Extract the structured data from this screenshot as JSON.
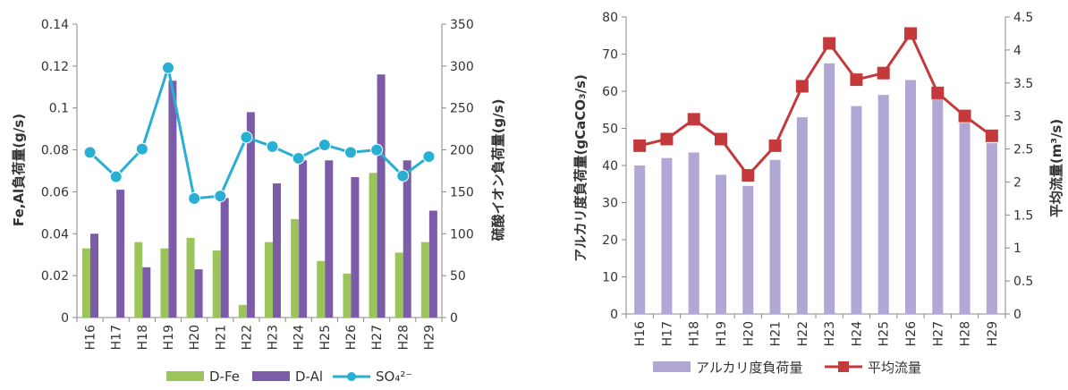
{
  "colors": {
    "d_fe": "#9BC45A",
    "d_al": "#7C5CA8",
    "so4": "#2AAFD4",
    "alk_bar": "#B1A6D4",
    "flow": "#C43A3A",
    "axis": "#888888"
  },
  "chart_data": [
    {
      "type": "bar",
      "categories": [
        "H16",
        "H17",
        "H18",
        "H19",
        "H20",
        "H21",
        "H22",
        "H23",
        "H24",
        "H25",
        "H26",
        "H27",
        "H28",
        "H29"
      ],
      "series": [
        {
          "name": "D-Fe",
          "axis": "left",
          "type": "bar",
          "values": [
            0.033,
            0,
            0.036,
            0.033,
            0.038,
            0.032,
            0.006,
            0.036,
            0.047,
            0.027,
            0.021,
            0.069,
            0.031,
            0.036
          ]
        },
        {
          "name": "D-Al",
          "axis": "left",
          "type": "bar",
          "values": [
            0.04,
            0.061,
            0.024,
            0.113,
            0.023,
            0.057,
            0.098,
            0.064,
            0.075,
            0.075,
            0.067,
            0.116,
            0.075,
            0.051
          ]
        },
        {
          "name": "SO₄²⁻",
          "axis": "right",
          "type": "line",
          "values": [
            197,
            168,
            201,
            298,
            142,
            145,
            215,
            204,
            190,
            206,
            197,
            200,
            169,
            192
          ]
        }
      ],
      "ylabel": "Fe,Al負荷量(g/s)",
      "ylabel_right": "硫酸イオン負荷量(g/s)",
      "ylim": [
        0,
        0.14
      ],
      "ylim_right": [
        0,
        350
      ],
      "yticks": [
        "0",
        "0.02",
        "0.04",
        "0.06",
        "0.08",
        "0.1",
        "0.12",
        "0.14"
      ],
      "yticks_right": [
        "0",
        "50",
        "100",
        "150",
        "200",
        "250",
        "300",
        "350"
      ],
      "legend_position": "bottom"
    },
    {
      "type": "bar",
      "categories": [
        "H16",
        "H17",
        "H18",
        "H19",
        "H20",
        "H21",
        "H22",
        "H23",
        "H24",
        "H25",
        "H26",
        "H27",
        "H28",
        "H29"
      ],
      "series": [
        {
          "name": "アルカリ度負荷量",
          "axis": "left",
          "type": "bar",
          "values": [
            40,
            42,
            43.5,
            37.5,
            34.5,
            41.5,
            53,
            67.5,
            56,
            59,
            63,
            58,
            51.5,
            46
          ]
        },
        {
          "name": "平均流量",
          "axis": "right",
          "type": "line",
          "values": [
            2.55,
            2.65,
            2.95,
            2.65,
            2.1,
            2.55,
            3.45,
            4.1,
            3.55,
            3.65,
            4.25,
            3.35,
            3.0,
            2.7
          ]
        }
      ],
      "ylabel": "アルカリ度負荷量(gCaCO₃/s)",
      "ylabel_right": "平均流量(m³/s)",
      "ylim": [
        0,
        80
      ],
      "ylim_right": [
        0,
        4.5
      ],
      "yticks": [
        "0",
        "10",
        "20",
        "30",
        "40",
        "50",
        "60",
        "70",
        "80"
      ],
      "yticks_right": [
        "0",
        "0.5",
        "1",
        "1.5",
        "2",
        "2.5",
        "3",
        "3.5",
        "4",
        "4.5"
      ],
      "legend_position": "bottom"
    }
  ]
}
